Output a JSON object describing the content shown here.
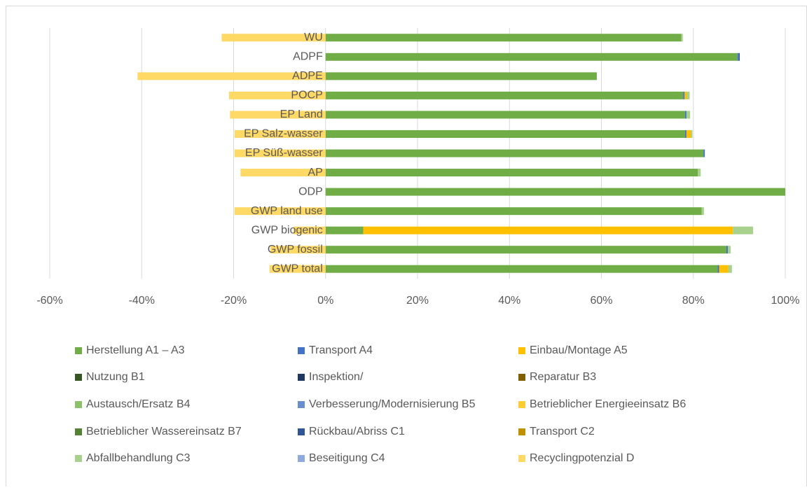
{
  "chart_data": {
    "type": "bar",
    "orientation": "horizontal",
    "stacked": true,
    "categories": [
      "WU",
      "ADPF",
      "ADPE",
      "POCP",
      "EP Land",
      "EP Salz-wasser",
      "EP Süß-wasser",
      "AP",
      "ODP",
      "GWP land use",
      "GWP biogenic",
      "GWP fossil",
      "GWP total"
    ],
    "xlim": [
      -60,
      100
    ],
    "xticks": [
      {
        "value": -60,
        "label": "-60%"
      },
      {
        "value": -40,
        "label": "-40%"
      },
      {
        "value": -20,
        "label": "-20%"
      },
      {
        "value": 0,
        "label": "0%"
      },
      {
        "value": 20,
        "label": "20%"
      },
      {
        "value": 40,
        "label": "40%"
      },
      {
        "value": 60,
        "label": "60%"
      },
      {
        "value": 80,
        "label": "80%"
      },
      {
        "value": 100,
        "label": "100%"
      }
    ],
    "grid": true,
    "legend": "bottom",
    "series": [
      {
        "name": "Herstellung A1 – A3",
        "color": "#70ad47",
        "values": [
          77.4,
          89.6,
          59,
          77.8,
          78.2,
          78.2,
          82.2,
          81,
          100,
          81.8,
          8.2,
          87.2,
          85.3
        ]
      },
      {
        "name": "Transport A4",
        "color": "#4472c4",
        "values": [
          0,
          0.3,
          0,
          0.3,
          0.3,
          0.3,
          0.3,
          0,
          0,
          0,
          0,
          0.3,
          0.3
        ]
      },
      {
        "name": "Einbau/Montage A5",
        "color": "#ffc000",
        "values": [
          0,
          0,
          0,
          0.5,
          0,
          1.0,
          0,
          0,
          0,
          0,
          80.4,
          0,
          2.0
        ]
      },
      {
        "name": "Nutzung B1",
        "color": "#375623",
        "values": [
          0,
          0,
          0,
          0,
          0,
          0,
          0,
          0,
          0,
          0,
          0,
          0,
          0
        ]
      },
      {
        "name": "Inspektion/",
        "color": "#1f3864",
        "values": [
          0,
          0,
          0,
          0,
          0,
          0,
          0,
          0,
          0,
          0,
          0,
          0,
          0
        ]
      },
      {
        "name": "Reparatur B3",
        "color": "#7f6000",
        "values": [
          0,
          0,
          0,
          0,
          0,
          0,
          0,
          0,
          0,
          0,
          0,
          0,
          0
        ]
      },
      {
        "name": "Austausch/Ersatz B4",
        "color": "#8cc168",
        "values": [
          0,
          0,
          0,
          0,
          0,
          0,
          0,
          0,
          0,
          0,
          0,
          0,
          0
        ]
      },
      {
        "name": "Verbesserung/Modernisierung B5",
        "color": "#698ed0",
        "values": [
          0,
          0,
          0,
          0,
          0,
          0,
          0,
          0,
          0,
          0,
          0,
          0,
          0
        ]
      },
      {
        "name": "Betrieblicher Energieeinsatz B6",
        "color": "#ffcd33",
        "values": [
          0,
          0,
          0,
          0,
          0,
          0,
          0,
          0,
          0,
          0,
          0,
          0,
          0
        ]
      },
      {
        "name": "Betrieblicher Wassereinsatz B7",
        "color": "#548235",
        "values": [
          0,
          0,
          0,
          0,
          0,
          0,
          0,
          0,
          0,
          0,
          0,
          0,
          0
        ]
      },
      {
        "name": "Rückbau/Abriss C1",
        "color": "#2f5597",
        "values": [
          0,
          0.2,
          0,
          0,
          0,
          0,
          0,
          0,
          0,
          0,
          0,
          0,
          0
        ]
      },
      {
        "name": "Transport C2",
        "color": "#bf9000",
        "values": [
          0,
          0,
          0,
          0,
          0,
          0,
          0,
          0,
          0,
          0,
          0,
          0,
          0
        ]
      },
      {
        "name": "Abfallbehandlung C3",
        "color": "#a9d18e",
        "values": [
          0.3,
          0,
          0,
          0.6,
          0.8,
          0.3,
          0,
          0.6,
          0,
          0.5,
          4.4,
          0.6,
          0.8
        ]
      },
      {
        "name": "Beseitigung C4",
        "color": "#8faadc",
        "values": [
          0,
          0,
          0,
          0,
          0,
          0,
          0,
          0,
          0,
          0,
          0,
          0,
          0
        ]
      },
      {
        "name": "Recyclingpotenzial D",
        "color": "#ffd966",
        "values": [
          -22.6,
          0,
          -40.9,
          -21,
          -20.8,
          -19.8,
          -19.8,
          -18.5,
          0,
          -19.8,
          -7,
          -12,
          -12.2
        ]
      }
    ]
  }
}
